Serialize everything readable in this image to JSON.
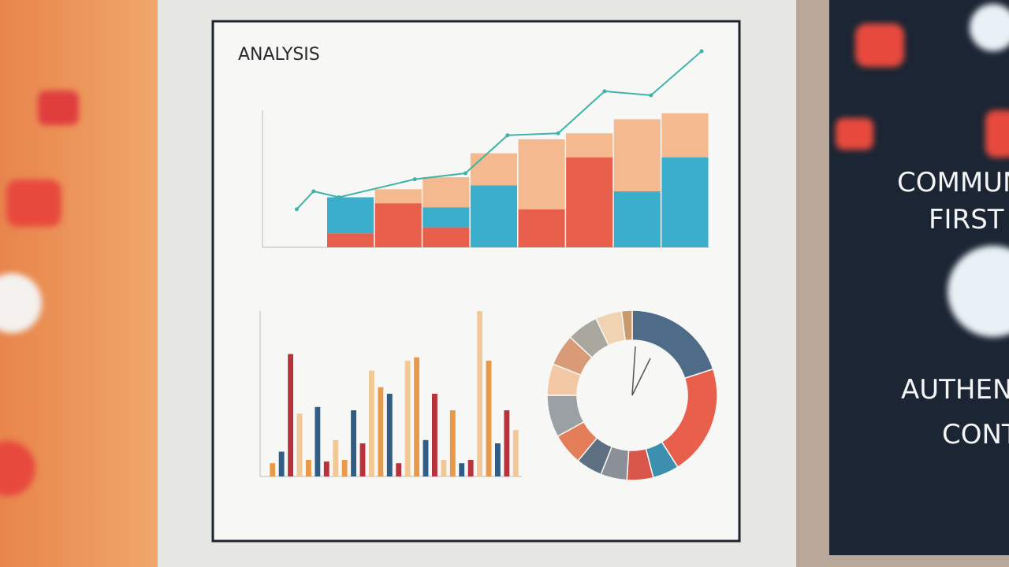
{
  "poster": {
    "title": "ANALYSIS"
  },
  "side_panel": {
    "lines": [
      "COMMUN",
      "FIRST",
      "AUTHEN",
      "CONT"
    ]
  },
  "chart_data": [
    {
      "type": "stacked-bar",
      "ylim": [
        0,
        100
      ],
      "categories": [
        null,
        null,
        null,
        null,
        null,
        null,
        null,
        null
      ],
      "series": [
        {
          "color": "#e8604c",
          "values": [
            7,
            22,
            10,
            0,
            19,
            45,
            0,
            0
          ]
        },
        {
          "color": "#3aaecb",
          "values": [
            18,
            0,
            10,
            31,
            0,
            0,
            28,
            45
          ]
        },
        {
          "color": "#f4b98e",
          "values": [
            0,
            7,
            15,
            16,
            35,
            12,
            36,
            22
          ]
        }
      ]
    },
    {
      "type": "line",
      "xlim": [
        0,
        100
      ],
      "ylim": [
        0,
        100
      ],
      "color": "#3fb3a8",
      "x": [
        4,
        8,
        14,
        32,
        44,
        54,
        66,
        77,
        88,
        100
      ],
      "values": [
        19,
        28,
        25,
        34,
        37,
        56,
        57,
        78,
        76,
        98
      ]
    },
    {
      "type": "bar",
      "ylim": [
        0,
        100
      ],
      "colors": [
        "#e89a4a",
        "#2f5d85",
        "#b8323c",
        "#f2c896"
      ],
      "values": [
        8,
        15,
        74,
        38,
        10,
        42,
        9,
        22,
        10,
        40,
        20,
        64,
        54,
        50,
        8,
        70,
        72,
        22,
        50,
        10,
        40,
        8,
        10,
        100,
        70,
        20,
        40,
        28
      ]
    },
    {
      "type": "donut",
      "values": [
        20,
        21,
        5,
        5,
        5,
        5,
        6,
        8,
        6,
        6,
        6,
        5,
        2
      ],
      "colors": [
        "#4e6c88",
        "#e8604c",
        "#3d8fb0",
        "#d9564a",
        "#8a8f98",
        "#5d6f80",
        "#e47e58",
        "#9aa0a4",
        "#f2c9a4",
        "#d99a78",
        "#a9a79e",
        "#f0d3b0",
        "#c89a6e"
      ]
    }
  ]
}
